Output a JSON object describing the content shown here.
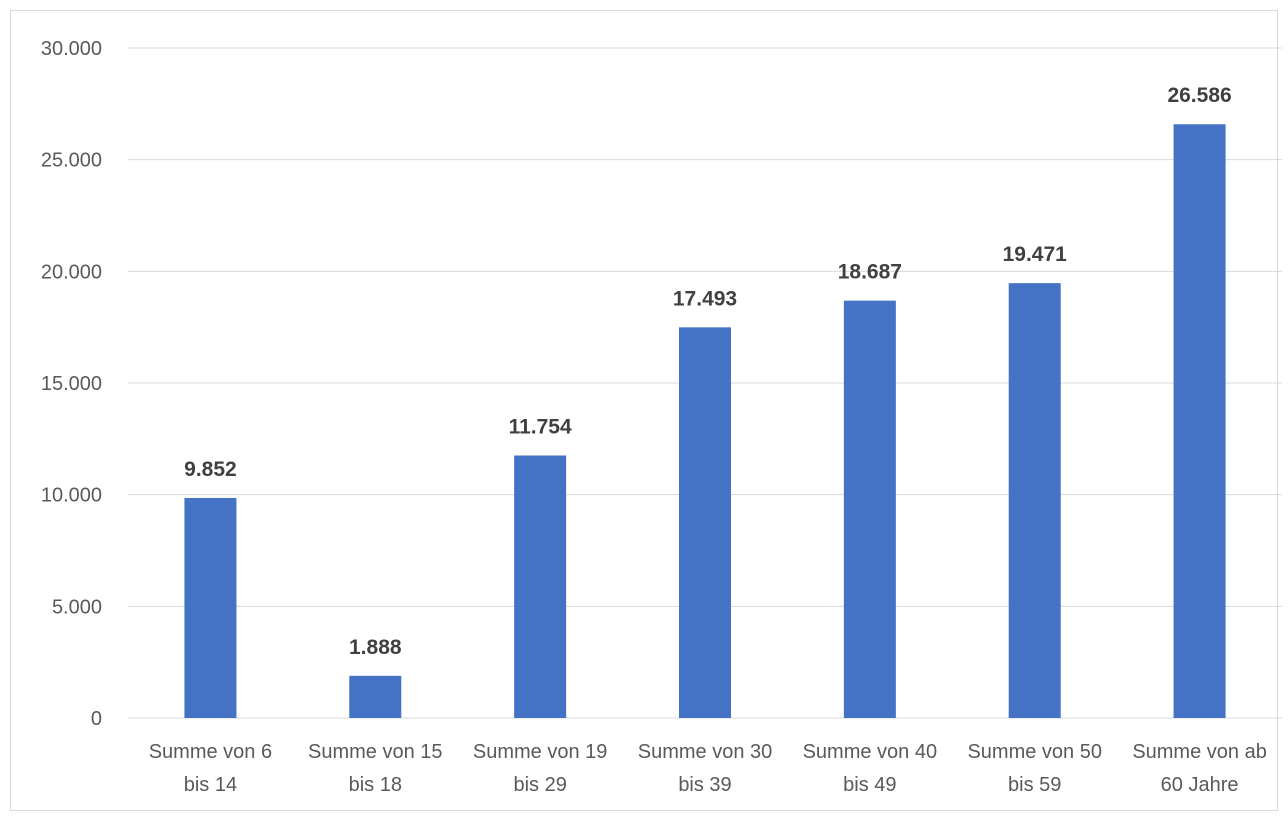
{
  "chart_data": {
    "type": "bar",
    "title": "",
    "xlabel": "",
    "ylabel": "",
    "categories": [
      [
        "Summe von 6",
        "bis 14"
      ],
      [
        "Summe von 15",
        "bis 18"
      ],
      [
        "Summe von 19",
        "bis 29"
      ],
      [
        "Summe von 30",
        "bis 39"
      ],
      [
        "Summe von 40",
        "bis 49"
      ],
      [
        "Summe von 50",
        "bis 59"
      ],
      [
        "Summe von ab",
        "60 Jahre"
      ]
    ],
    "values": [
      9852,
      1888,
      11754,
      17493,
      18687,
      19471,
      26586
    ],
    "data_labels": [
      "9.852",
      "1.888",
      "11.754",
      "17.493",
      "18.687",
      "19.471",
      "26.586"
    ],
    "ylim": [
      0,
      30000
    ],
    "yticks": [
      0,
      5000,
      10000,
      15000,
      20000,
      25000,
      30000
    ],
    "ytick_labels": [
      "0",
      "5.000",
      "10.000",
      "15.000",
      "20.000",
      "25.000",
      "30.000"
    ],
    "grid": true,
    "legend": "none",
    "bar_color": "#4472C4"
  }
}
